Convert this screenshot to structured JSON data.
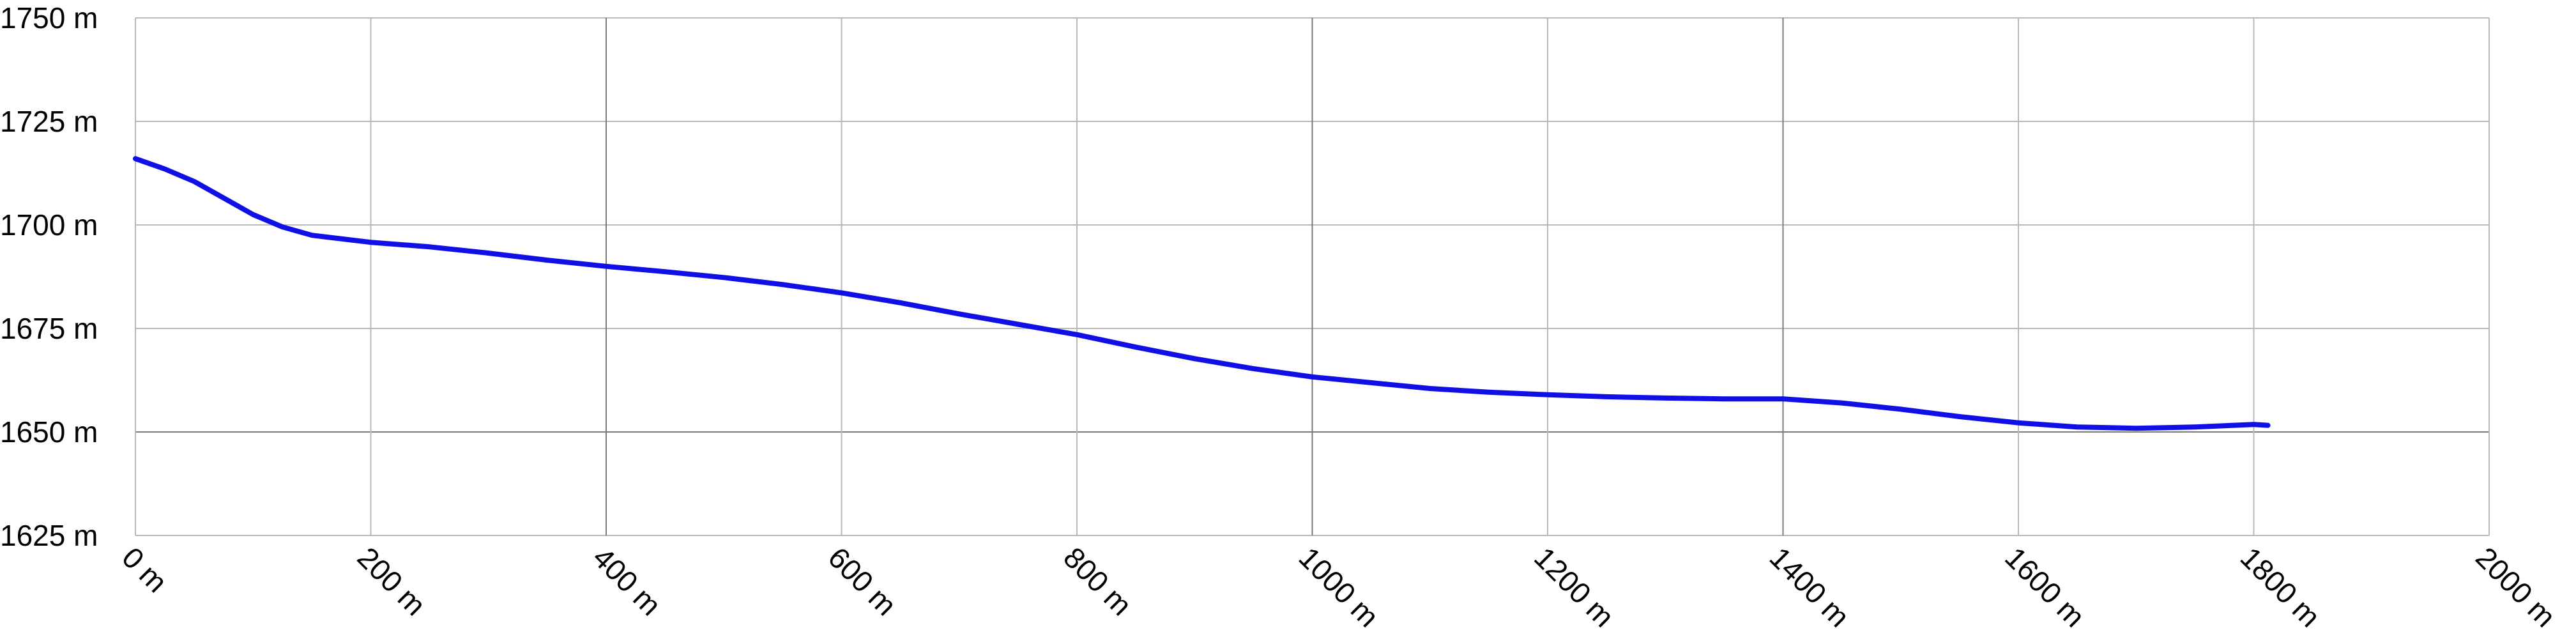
{
  "chart_data": {
    "type": "line",
    "title": "",
    "xlabel": "",
    "ylabel": "",
    "x_unit": "m",
    "y_unit": "m",
    "xlim": [
      0,
      2000
    ],
    "ylim": [
      1625,
      1750
    ],
    "grid": true,
    "x_ticks": [
      "0 m",
      "200 m",
      "400 m",
      "600 m",
      "800 m",
      "1000 m",
      "1200 m",
      "1400 m",
      "1600 m",
      "1800 m",
      "2000 m"
    ],
    "y_ticks": [
      "1750 m",
      "1725 m",
      "1700 m",
      "1675 m",
      "1650 m",
      "1625 m"
    ],
    "series": [
      {
        "color": "#1010e6",
        "points": [
          [
            0,
            1716
          ],
          [
            25,
            1713.5
          ],
          [
            50,
            1710.5
          ],
          [
            75,
            1706.5
          ],
          [
            100,
            1702.5
          ],
          [
            125,
            1699.5
          ],
          [
            150,
            1697.5
          ],
          [
            200,
            1695.8
          ],
          [
            250,
            1694.7
          ],
          [
            300,
            1693.2
          ],
          [
            350,
            1691.5
          ],
          [
            400,
            1690
          ],
          [
            450,
            1688.7
          ],
          [
            500,
            1687.3
          ],
          [
            550,
            1685.6
          ],
          [
            600,
            1683.6
          ],
          [
            650,
            1681.2
          ],
          [
            700,
            1678.5
          ],
          [
            750,
            1676
          ],
          [
            800,
            1673.5
          ],
          [
            850,
            1670.5
          ],
          [
            900,
            1667.7
          ],
          [
            950,
            1665.3
          ],
          [
            1000,
            1663.3
          ],
          [
            1050,
            1661.9
          ],
          [
            1100,
            1660.5
          ],
          [
            1150,
            1659.6
          ],
          [
            1200,
            1659
          ],
          [
            1250,
            1658.5
          ],
          [
            1300,
            1658.2
          ],
          [
            1350,
            1658
          ],
          [
            1400,
            1658
          ],
          [
            1450,
            1657
          ],
          [
            1500,
            1655.5
          ],
          [
            1550,
            1653.7
          ],
          [
            1600,
            1652.2
          ],
          [
            1650,
            1651.2
          ],
          [
            1700,
            1650.9
          ],
          [
            1750,
            1651.2
          ],
          [
            1800,
            1651.8
          ],
          [
            1812,
            1651.6
          ]
        ]
      }
    ]
  }
}
